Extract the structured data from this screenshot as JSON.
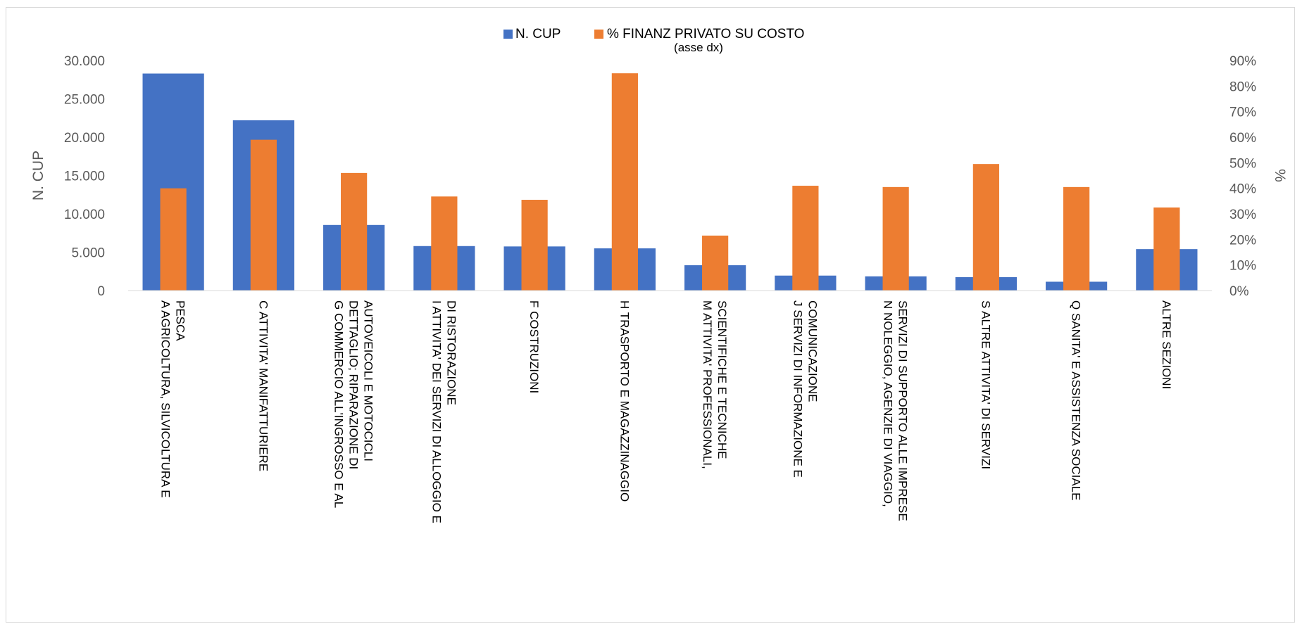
{
  "chart_data": {
    "type": "bar",
    "categories": [
      [
        "A AGRICOLTURA, SILVICOLTURA E",
        "PESCA"
      ],
      [
        "C ATTIVITA' MANIFATTURIERE"
      ],
      [
        "G COMMERCIO ALL'INGROSSO E AL",
        "DETTAGLIO; RIPARAZIONE DI",
        "AUTOVEICOLI E MOTOCICLI"
      ],
      [
        "I ATTIVITA' DEI SERVIZI DI ALLOGGIO E",
        "DI RISTORAZIONE"
      ],
      [
        "F COSTRUZIONI"
      ],
      [
        "H TRASPORTO E MAGAZZINAGGIO"
      ],
      [
        "M ATTIVITA' PROFESSIONALI,",
        "SCIENTIFICHE E TECNICHE"
      ],
      [
        "J SERVIZI DI INFORMAZIONE E",
        "COMUNICAZIONE"
      ],
      [
        "N NOLEGGIO, AGENZIE DI VIAGGIO,",
        "SERVIZI DI SUPPORTO ALLE IMPRESE"
      ],
      [
        "S ALTRE ATTIVITA' DI SERVIZI"
      ],
      [
        "Q SANITA' E ASSISTENZA SOCIALE"
      ],
      [
        "ALTRE SEZIONI"
      ]
    ],
    "series": [
      {
        "name": "N. CUP",
        "axis": "left",
        "color": "#4472C4",
        "values": [
          28300,
          22200,
          8550,
          5800,
          5750,
          5500,
          3300,
          1950,
          1850,
          1750,
          1150,
          5400
        ]
      },
      {
        "name": "% FINANZ PRIVATO SU COSTO",
        "name_line2": "(asse dx)",
        "axis": "right",
        "color": "#ED7D31",
        "values": [
          40,
          59,
          46,
          36.8,
          35.5,
          85,
          21.5,
          41,
          40.5,
          49.5,
          40.5,
          32.5
        ]
      }
    ],
    "ylabel": "N. CUP",
    "y2label": "%",
    "ylim": [
      0,
      30000
    ],
    "y2lim": [
      0,
      90
    ],
    "yticks": [
      "0",
      "5.000",
      "10.000",
      "15.000",
      "20.000",
      "25.000",
      "30.000"
    ],
    "y2ticks": [
      "0%",
      "10%",
      "20%",
      "30%",
      "40%",
      "50%",
      "60%",
      "70%",
      "80%",
      "90%"
    ],
    "legend_position": "top-center",
    "grid": false
  }
}
